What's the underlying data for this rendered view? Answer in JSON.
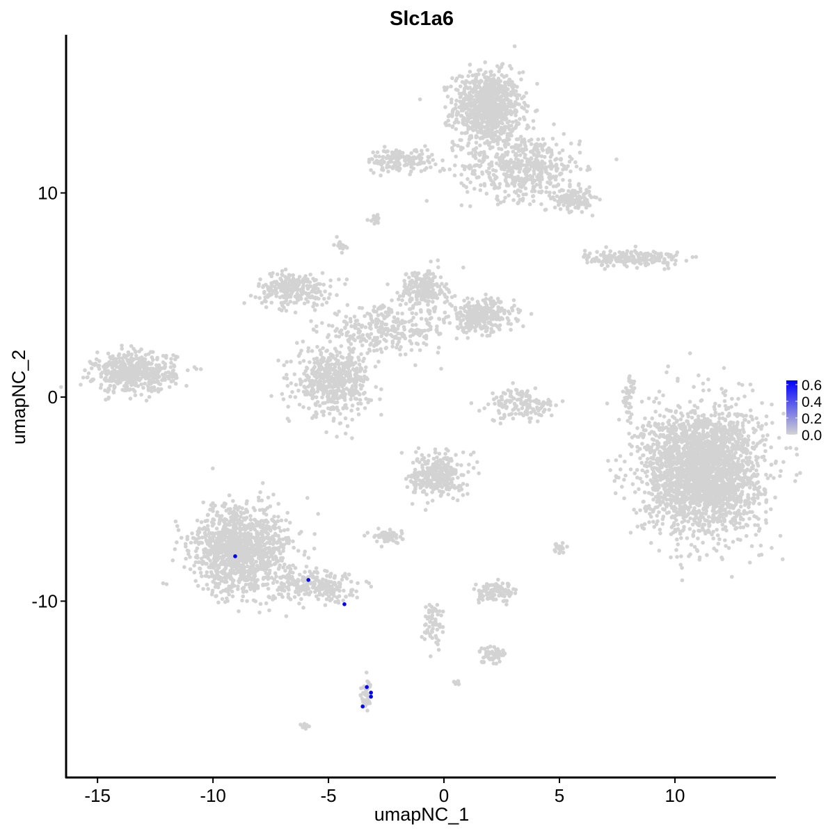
{
  "chart_data": {
    "type": "scatter",
    "title": "Slc1a6",
    "xlabel": "umapNC_1",
    "ylabel": "umapNC_2",
    "xlim": [
      -16.36,
      14.37
    ],
    "ylim": [
      -18.64,
      17.75
    ],
    "x_ticks": [
      -15,
      -10,
      -5,
      0,
      5,
      10
    ],
    "y_ticks": [
      -10,
      0,
      10
    ],
    "grid": false,
    "base_color": "#D3D3D3",
    "high_color": "#0000FF",
    "legend": {
      "position": "right",
      "type": "colorbar",
      "range": [
        0,
        0.65
      ],
      "ticks": [
        "0.0",
        "0.2",
        "0.4",
        "0.6"
      ]
    },
    "expressing_points": [
      {
        "x": -9.04,
        "y": -7.8
      },
      {
        "x": -5.87,
        "y": -8.96
      },
      {
        "x": -4.31,
        "y": -10.15
      },
      {
        "x": -3.34,
        "y": -14.21
      },
      {
        "x": -3.16,
        "y": -14.48
      },
      {
        "x": -3.16,
        "y": -14.68
      },
      {
        "x": -3.52,
        "y": -15.16
      }
    ],
    "non_expressing_clusters": [
      {
        "cx": 1.87,
        "cy": 14.17,
        "sx": 0.9,
        "sy": 1.1,
        "n": 900
      },
      {
        "cx": 3.37,
        "cy": 11.3,
        "sx": 1.6,
        "sy": 1.0,
        "n": 500
      },
      {
        "cx": 5.6,
        "cy": 9.7,
        "sx": 0.5,
        "sy": 0.35,
        "n": 150
      },
      {
        "cx": -1.9,
        "cy": 11.6,
        "sx": 0.9,
        "sy": 0.35,
        "n": 150
      },
      {
        "cx": -2.95,
        "cy": 8.7,
        "sx": 0.15,
        "sy": 0.12,
        "n": 15
      },
      {
        "cx": -4.5,
        "cy": 7.45,
        "sx": 0.15,
        "sy": 0.2,
        "n": 15
      },
      {
        "cx": 8.2,
        "cy": 6.8,
        "sx": 1.3,
        "sy": 0.25,
        "n": 200
      },
      {
        "cx": -6.5,
        "cy": 5.3,
        "sx": 1.0,
        "sy": 0.5,
        "n": 250
      },
      {
        "cx": -0.9,
        "cy": 5.3,
        "sx": 0.6,
        "sy": 0.6,
        "n": 200
      },
      {
        "cx": 1.6,
        "cy": 4.0,
        "sx": 0.9,
        "sy": 0.5,
        "n": 300
      },
      {
        "cx": -2.5,
        "cy": 3.3,
        "sx": 1.8,
        "sy": 0.7,
        "n": 300
      },
      {
        "cx": -4.8,
        "cy": 0.8,
        "sx": 1.0,
        "sy": 1.0,
        "n": 500
      },
      {
        "cx": -13.4,
        "cy": 1.2,
        "sx": 1.1,
        "sy": 0.6,
        "n": 500
      },
      {
        "cx": 3.4,
        "cy": -0.4,
        "sx": 0.9,
        "sy": 0.5,
        "n": 150
      },
      {
        "cx": 8.0,
        "cy": 0.0,
        "sx": 0.2,
        "sy": 0.7,
        "n": 40
      },
      {
        "cx": 11.2,
        "cy": -3.6,
        "sx": 1.6,
        "sy": 1.9,
        "n": 2500
      },
      {
        "cx": -0.3,
        "cy": -3.8,
        "sx": 0.7,
        "sy": 0.7,
        "n": 300
      },
      {
        "cx": -2.4,
        "cy": -6.8,
        "sx": 0.4,
        "sy": 0.2,
        "n": 60
      },
      {
        "cx": -8.8,
        "cy": -7.5,
        "sx": 1.3,
        "sy": 1.3,
        "n": 1200
      },
      {
        "cx": -5.5,
        "cy": -9.3,
        "sx": 1.3,
        "sy": 0.45,
        "n": 250
      },
      {
        "cx": 2.3,
        "cy": -9.6,
        "sx": 0.5,
        "sy": 0.3,
        "n": 100
      },
      {
        "cx": -0.5,
        "cy": -11.0,
        "sx": 0.3,
        "sy": 0.7,
        "n": 60
      },
      {
        "cx": 2.1,
        "cy": -12.6,
        "sx": 0.4,
        "sy": 0.25,
        "n": 60
      },
      {
        "cx": -3.35,
        "cy": -14.5,
        "sx": 0.15,
        "sy": 0.4,
        "n": 50
      },
      {
        "cx": -6.05,
        "cy": -16.1,
        "sx": 0.1,
        "sy": 0.1,
        "n": 10
      },
      {
        "cx": 5.0,
        "cy": -7.4,
        "sx": 0.15,
        "sy": 0.2,
        "n": 20
      },
      {
        "cx": 0.5,
        "cy": -14.0,
        "sx": 0.1,
        "sy": 0.1,
        "n": 8
      }
    ]
  }
}
